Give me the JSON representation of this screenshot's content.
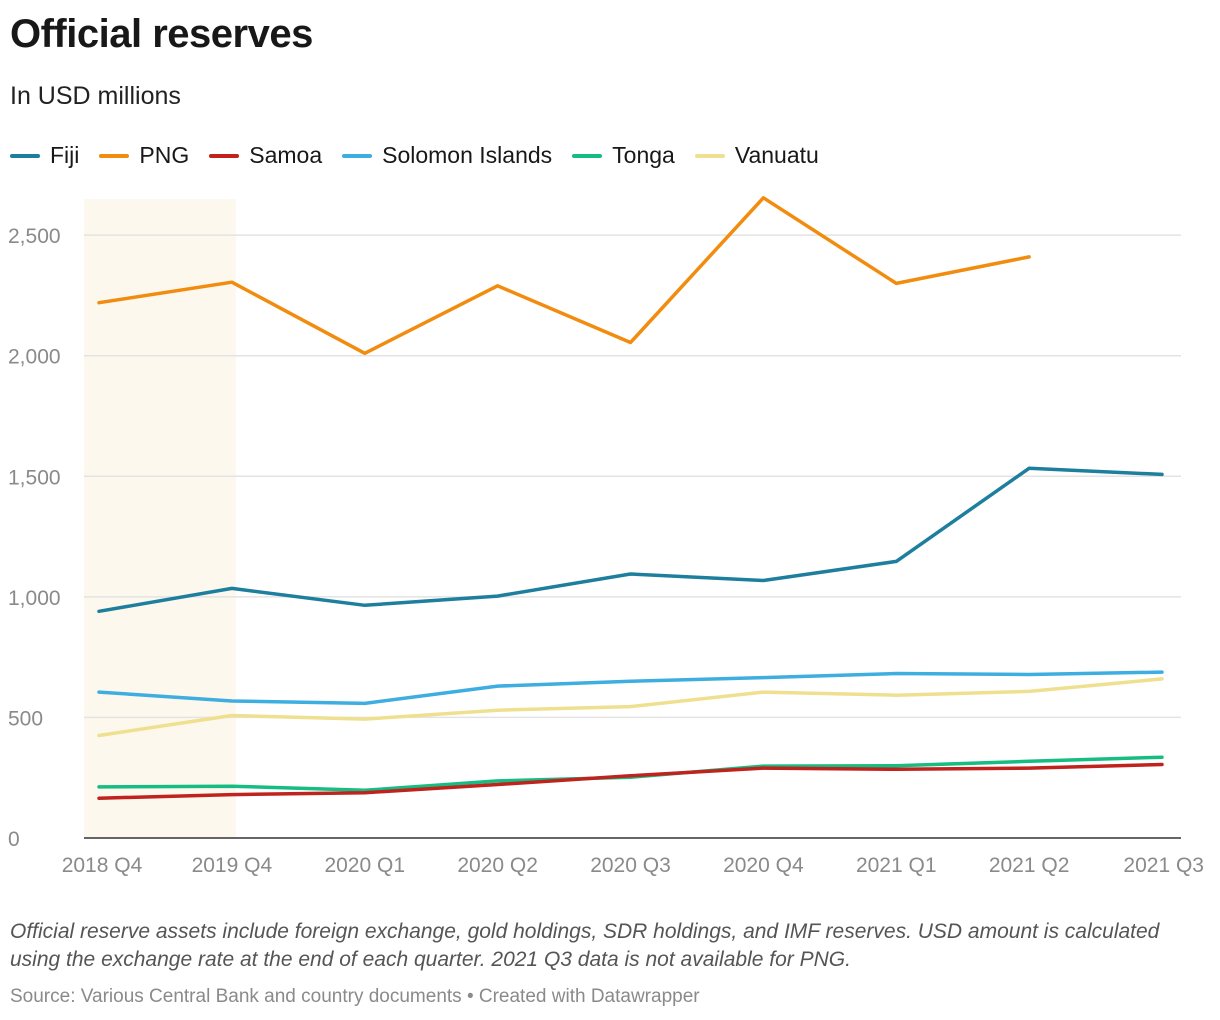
{
  "title": "Official reserves",
  "subtitle": "In USD millions",
  "note": "Official reserve assets include foreign exchange, gold holdings, SDR holdings, and IMF reserves. USD amount is calculated using the exchange rate at the end of each quarter. 2021 Q3 data is not available for PNG.",
  "source": "Source: Various Central Bank and country documents • Created with Datawrapper",
  "chart_data": {
    "type": "line",
    "categories": [
      "2018 Q4",
      "2019 Q4",
      "2020 Q1",
      "2020 Q2",
      "2020 Q3",
      "2020 Q4",
      "2021 Q1",
      "2021 Q2",
      "2021 Q3"
    ],
    "ylim": [
      0,
      2650
    ],
    "yticks": [
      0,
      500,
      1000,
      1500,
      2000,
      2500
    ],
    "ytick_labels": [
      "0",
      "500",
      "1,000",
      "1,500",
      "2,000",
      "2,500"
    ],
    "highlight_range": [
      "2018 Q4",
      "2019 Q4"
    ],
    "grid": true,
    "legend_position": "top-left",
    "series": [
      {
        "name": "Fiji",
        "color": "#1d7f9d",
        "values": [
          940,
          1035,
          965,
          1003,
          1095,
          1068,
          1147,
          1533,
          1508
        ]
      },
      {
        "name": "PNG",
        "color": "#f28c0f",
        "values": [
          2220,
          2305,
          2010,
          2290,
          2055,
          2655,
          2300,
          2410,
          null
        ]
      },
      {
        "name": "Samoa",
        "color": "#c0221d",
        "values": [
          165,
          180,
          188,
          222,
          258,
          290,
          285,
          290,
          305
        ]
      },
      {
        "name": "Solomon Islands",
        "color": "#3eaee0",
        "values": [
          605,
          568,
          558,
          630,
          650,
          665,
          682,
          678,
          688
        ]
      },
      {
        "name": "Tonga",
        "color": "#16bd82",
        "values": [
          212,
          215,
          198,
          237,
          252,
          298,
          300,
          318,
          335
        ]
      },
      {
        "name": "Vanuatu",
        "color": "#efe08f",
        "values": [
          425,
          508,
          493,
          530,
          545,
          605,
          592,
          608,
          660
        ]
      }
    ]
  }
}
